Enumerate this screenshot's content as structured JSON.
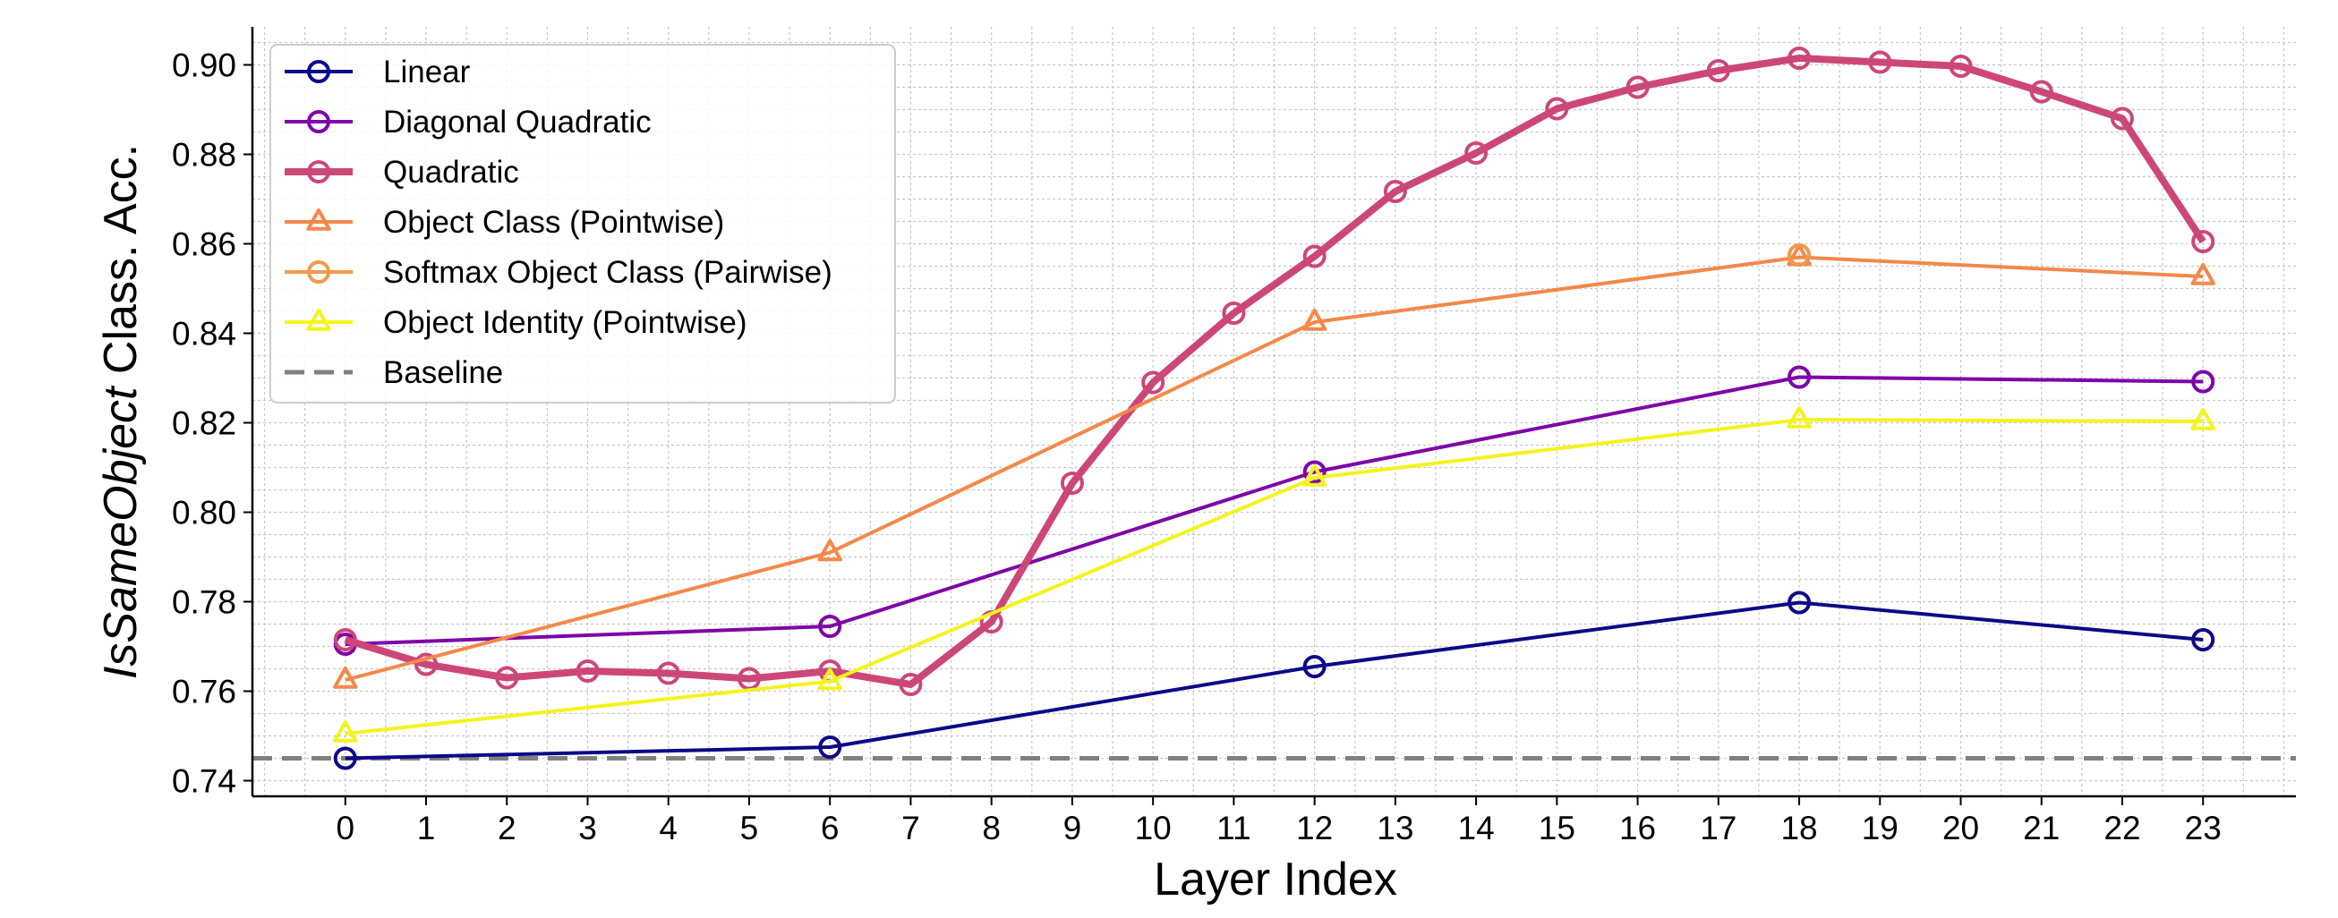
{
  "chart_data": {
    "type": "line",
    "xlabel": "Layer Index",
    "ylabel_italic": "IsSameObject",
    "ylabel_rest": " Class. Acc.",
    "x_ticks": [
      0,
      1,
      2,
      3,
      4,
      5,
      6,
      7,
      8,
      9,
      10,
      11,
      12,
      13,
      14,
      15,
      16,
      17,
      18,
      19,
      20,
      21,
      22,
      23
    ],
    "y_ticks": [
      "0.74",
      "0.76",
      "0.78",
      "0.80",
      "0.82",
      "0.84",
      "0.86",
      "0.88",
      "0.90"
    ],
    "xlim": [
      -1.15,
      24.15
    ],
    "ylim": [
      0.7365,
      0.9085
    ],
    "grid": true,
    "legend_position": "top-left",
    "baseline": {
      "name": "Baseline",
      "value": 0.745,
      "color": "#808080"
    },
    "series": [
      {
        "name": "Linear",
        "color": "#0d0887",
        "marker": "circle",
        "width": 4,
        "x": [
          0,
          6,
          12,
          18,
          23
        ],
        "y": [
          0.745,
          0.7475,
          0.7655,
          0.7798,
          0.7715
        ]
      },
      {
        "name": "Diagonal Quadratic",
        "color": "#7e03a8",
        "marker": "circle",
        "width": 4,
        "x": [
          0,
          6,
          12,
          18,
          23
        ],
        "y": [
          0.7705,
          0.7745,
          0.809,
          0.8302,
          0.8292
        ]
      },
      {
        "name": "Quadratic",
        "color": "#cc4778",
        "marker": "circle",
        "width": 8,
        "x": [
          0,
          1,
          2,
          3,
          4,
          5,
          6,
          7,
          8,
          9,
          10,
          11,
          12,
          13,
          14,
          15,
          16,
          17,
          18,
          19,
          20,
          21,
          22,
          23
        ],
        "y": [
          0.7715,
          0.766,
          0.763,
          0.7645,
          0.764,
          0.7628,
          0.7645,
          0.7615,
          0.7755,
          0.8065,
          0.829,
          0.8445,
          0.8572,
          0.8717,
          0.8803,
          0.8902,
          0.895,
          0.8987,
          0.9015,
          0.9006,
          0.8997,
          0.894,
          0.888,
          0.8605
        ]
      },
      {
        "name": "Object Class (Pointwise)",
        "color": "#f48849",
        "marker": "triangle",
        "width": 4,
        "x": [
          0,
          6,
          12,
          18,
          23
        ],
        "y": [
          0.7625,
          0.791,
          0.8425,
          0.857,
          0.8527
        ]
      },
      {
        "name": "Softmax Object Class (Pairwise)",
        "color": "#f0994e",
        "marker": "circle",
        "width": 4,
        "x": [
          18
        ],
        "y": [
          0.8575
        ]
      },
      {
        "name": "Object Identity (Pointwise)",
        "color": "#f3f31f",
        "marker": "triangle",
        "width": 4,
        "x": [
          0,
          6,
          12,
          18,
          23
        ],
        "y": [
          0.7505,
          0.7622,
          0.8077,
          0.8207,
          0.8203
        ]
      }
    ]
  }
}
